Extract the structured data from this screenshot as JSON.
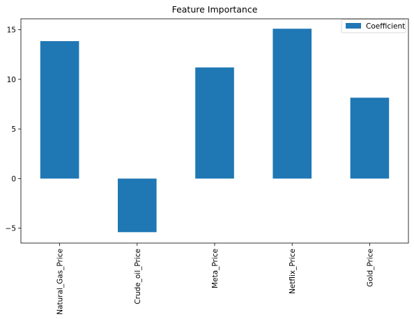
{
  "chart_data": {
    "type": "bar",
    "title": "Feature Importance",
    "xlabel": "",
    "ylabel": "",
    "categories": [
      "Natural_Gas_Price",
      "Crude_oil_Price",
      "Meta_Price",
      "Netflix_Price",
      "Gold_Price"
    ],
    "series": [
      {
        "name": "Coefficient",
        "values": [
          13.85,
          -5.4,
          11.2,
          15.1,
          8.15
        ],
        "color": "#1f77b4"
      }
    ],
    "ylim": [
      -6.5,
      16.1
    ],
    "yticks": [
      -5,
      0,
      5,
      10,
      15
    ],
    "ytick_labels": [
      "−5",
      "0",
      "5",
      "10",
      "15"
    ],
    "grid": false,
    "legend_position": "top-right"
  }
}
